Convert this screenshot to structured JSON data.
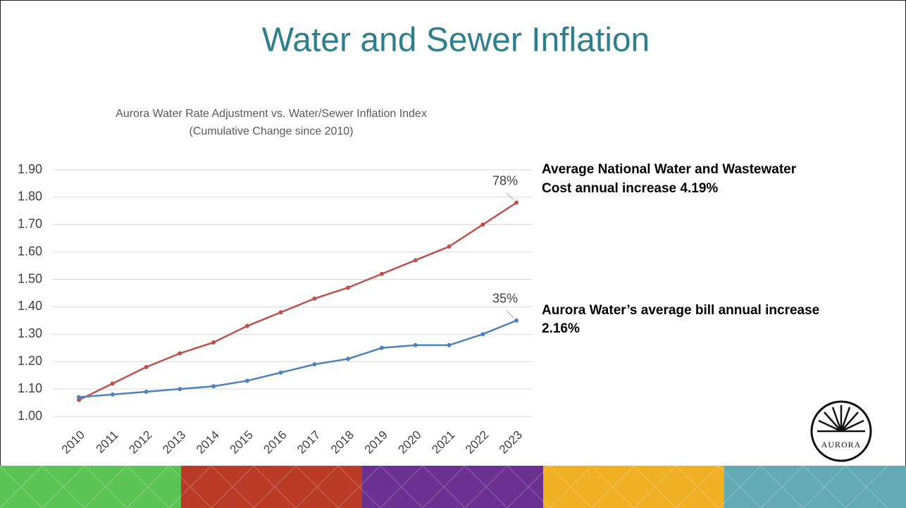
{
  "slide_title": "Water and Sewer Inflation",
  "chart_data": {
    "type": "line",
    "title": [
      "Aurora Water Rate Adjustment vs. Water/Sewer Inflation Index",
      "(Cumulative Change since 2010)"
    ],
    "categories": [
      "2010",
      "2011",
      "2012",
      "2013",
      "2014",
      "2015",
      "2016",
      "2017",
      "2018",
      "2019",
      "2020",
      "2021",
      "2022",
      "2023"
    ],
    "series": [
      {
        "color": "#c0504d",
        "values": [
          1.06,
          1.12,
          1.18,
          1.23,
          1.27,
          1.33,
          1.38,
          1.43,
          1.47,
          1.52,
          1.57,
          1.62,
          1.7,
          1.78
        ]
      },
      {
        "color": "#4f81bd",
        "values": [
          1.07,
          1.08,
          1.09,
          1.1,
          1.11,
          1.13,
          1.16,
          1.19,
          1.21,
          1.25,
          1.26,
          1.26,
          1.3,
          1.35
        ]
      }
    ],
    "annotations": [
      "78%",
      "35%"
    ],
    "ylim": [
      1.0,
      1.9
    ],
    "yticks": [
      {
        "value": 1.0,
        "label": "1.00"
      },
      {
        "value": 1.1,
        "label": "1.10"
      },
      {
        "value": 1.2,
        "label": "1.20"
      },
      {
        "value": 1.3,
        "label": "1.30"
      },
      {
        "value": 1.4,
        "label": "1.40"
      },
      {
        "value": 1.5,
        "label": "1.50"
      },
      {
        "value": 1.6,
        "label": "1.60"
      },
      {
        "value": 1.7,
        "label": "1.70"
      },
      {
        "value": 1.8,
        "label": "1.80"
      },
      {
        "value": 1.9,
        "label": "1.90"
      }
    ],
    "grid": true
  },
  "notes": [
    [
      "Average National Water and Wastewater",
      "Cost annual increase 4.19%"
    ],
    [
      "Aurora Water’s average bill annual increase",
      "2.16%"
    ]
  ],
  "logo_text": "AURORA"
}
